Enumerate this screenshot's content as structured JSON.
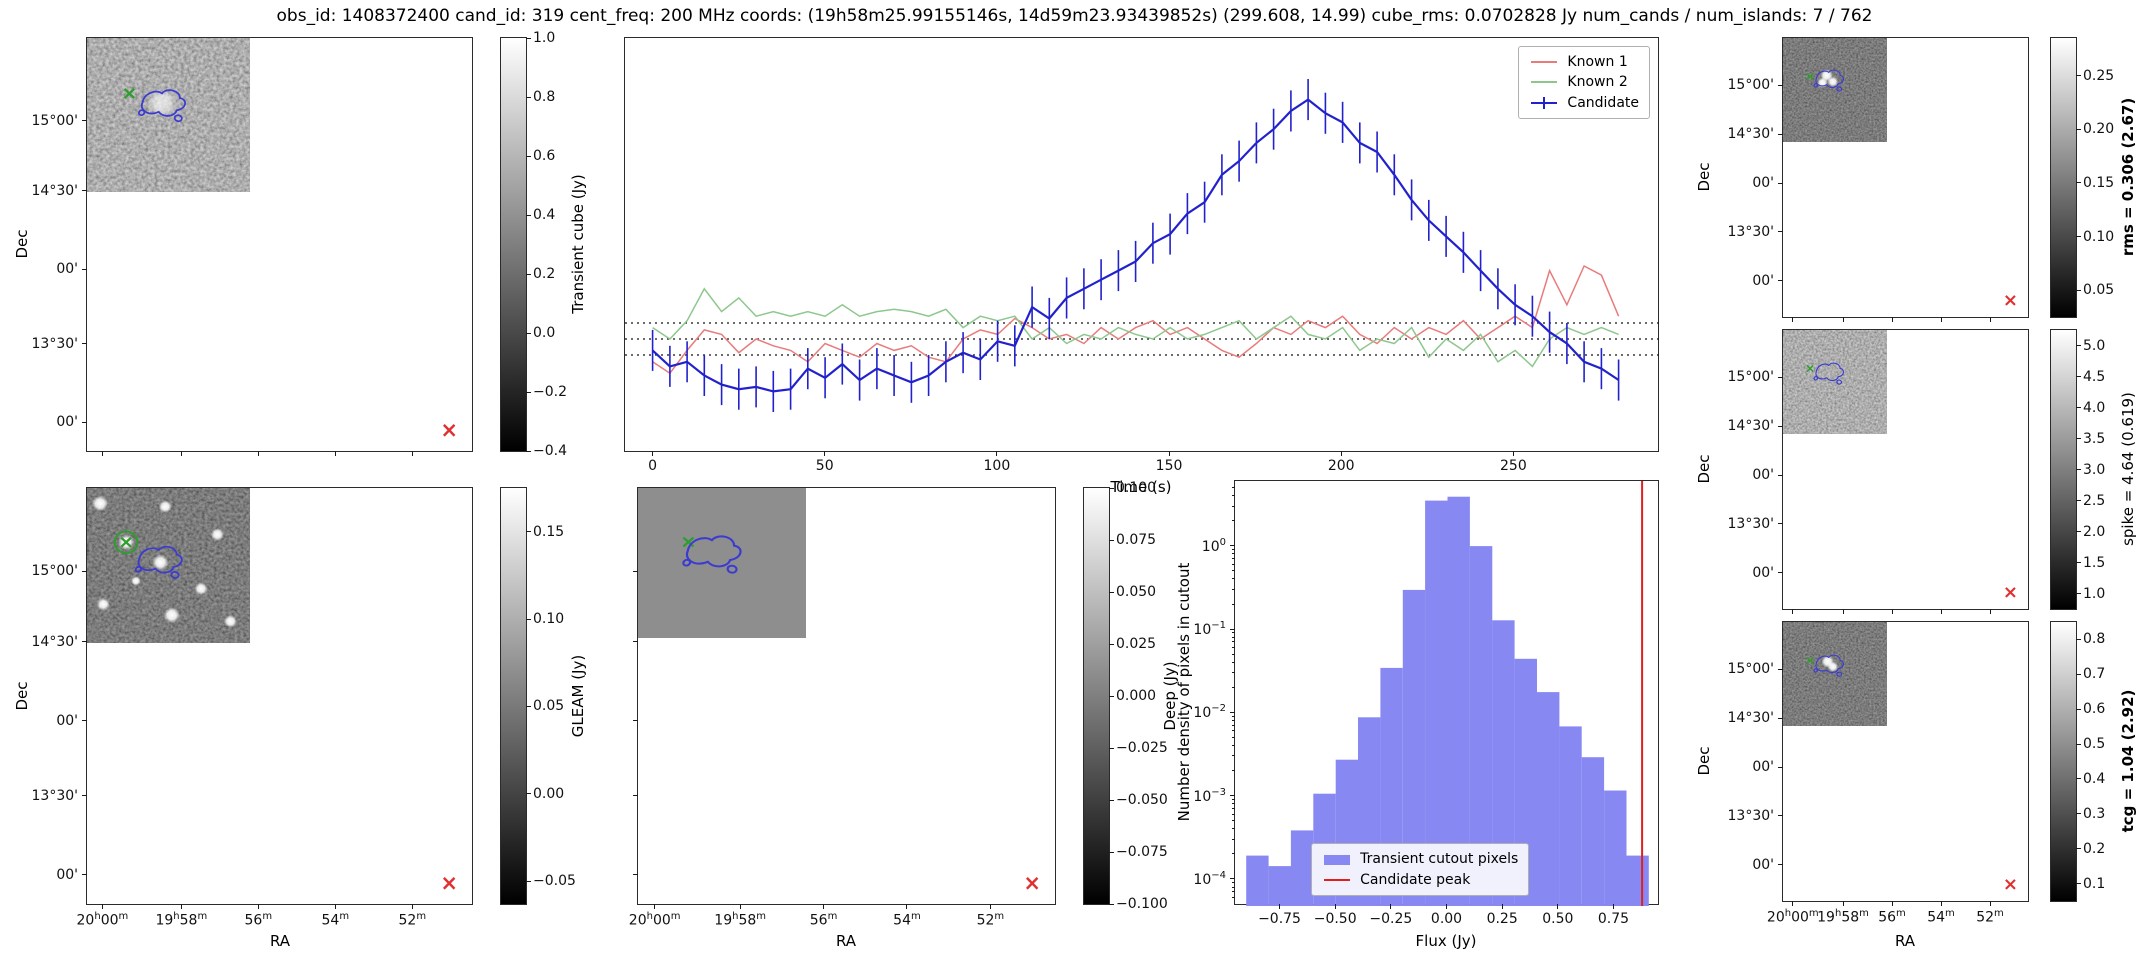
{
  "figure": {
    "title": "obs_id: 1408372400 cand_id: 319 cent_freq: 200 MHz coords: (19h58m25.99155146s, 14d59m23.93439852s) (299.608, 14.99) cube_rms: 0.0702828 Jy num_cands / num_islands: 7 / 762"
  },
  "axis_labels": {
    "dec": "Dec",
    "ra": "RA",
    "time": "Time (s)",
    "flux": "Flux (Jy)",
    "hist_y": "Number density of pixels in cutout"
  },
  "ticks": {
    "dec": [
      "15°00'",
      "14°30'",
      "00'",
      "13°30'",
      "00'"
    ],
    "ra": [
      "20h00m",
      "19h58m",
      "56m",
      "54m",
      "52m"
    ]
  },
  "colorbars": {
    "transient": {
      "label": "Transient cube (Jy)",
      "ticks": [
        "1.0",
        "0.8",
        "0.6",
        "0.4",
        "0.2",
        "0.0",
        "−0.2",
        "−0.4"
      ]
    },
    "gleam": {
      "label": "GLEAM (Jy)",
      "ticks": [
        "0.15",
        "0.10",
        "0.05",
        "0.00",
        "−0.05"
      ]
    },
    "deep": {
      "label": "Deep (Jy)",
      "ticks": [
        "0.100",
        "0.075",
        "0.050",
        "0.025",
        "0.000",
        "−0.025",
        "−0.050",
        "−0.075",
        "−0.100"
      ]
    },
    "rms": {
      "label": "rms = 0.306 (2.67)",
      "ticks": [
        "0.25",
        "0.20",
        "0.15",
        "0.10",
        "0.05"
      ]
    },
    "spike": {
      "label": "spike = 4.64 (0.619)",
      "ticks": [
        "5.0",
        "4.5",
        "4.0",
        "3.5",
        "3.0",
        "2.5",
        "2.0",
        "1.5",
        "1.0"
      ]
    },
    "tcg": {
      "label": "tcg = 1.04 (2.92)",
      "ticks": [
        "0.8",
        "0.7",
        "0.6",
        "0.5",
        "0.4",
        "0.3",
        "0.2",
        "0.1"
      ]
    }
  },
  "legend_histogram": {
    "pixels": "Transient cutout pixels",
    "peak": "Candidate peak"
  },
  "chart_data": [
    {
      "type": "line",
      "title": "",
      "xlabel": "Time (s)",
      "ylabel": "",
      "xlim": [
        -8,
        292
      ],
      "ylim": [
        -0.5,
        1.32
      ],
      "xticks": [
        0,
        50,
        100,
        150,
        200,
        250
      ],
      "dotted_lines_y": [
        0.0703,
        0.0,
        -0.0703
      ],
      "legend_position": "upper right",
      "x": [
        0,
        5,
        10,
        15,
        20,
        25,
        30,
        35,
        40,
        45,
        50,
        55,
        60,
        65,
        70,
        75,
        80,
        85,
        90,
        95,
        100,
        105,
        110,
        115,
        120,
        125,
        130,
        135,
        140,
        145,
        150,
        155,
        160,
        165,
        170,
        175,
        180,
        185,
        190,
        195,
        200,
        205,
        210,
        215,
        220,
        225,
        230,
        235,
        240,
        245,
        250,
        255,
        260,
        265,
        270,
        275,
        280
      ],
      "series": [
        {
          "name": "Known 1",
          "color": "#e87c7c",
          "values": [
            -0.1,
            -0.15,
            -0.05,
            0.04,
            0.02,
            -0.06,
            0.0,
            -0.03,
            -0.05,
            -0.1,
            -0.02,
            -0.05,
            -0.08,
            -0.02,
            -0.05,
            -0.03,
            -0.08,
            -0.1,
            0.0,
            0.04,
            0.02,
            0.09,
            0.05,
            0.0,
            0.02,
            -0.02,
            0.05,
            0.0,
            0.05,
            0.08,
            0.02,
            0.05,
            0.0,
            -0.05,
            -0.08,
            -0.02,
            0.05,
            0.02,
            0.08,
            0.05,
            0.1,
            0.02,
            -0.02,
            0.05,
            0.0,
            0.05,
            0.02,
            0.08,
            0.0,
            0.05,
            0.1,
            0.05,
            0.3,
            0.15,
            0.32,
            0.28,
            0.1
          ]
        },
        {
          "name": "Known 2",
          "color": "#8ec78e",
          "values": [
            0.05,
            0.0,
            0.08,
            0.22,
            0.12,
            0.18,
            0.1,
            0.12,
            0.1,
            0.12,
            0.1,
            0.15,
            0.1,
            0.12,
            0.13,
            0.12,
            0.1,
            0.13,
            0.05,
            0.1,
            0.08,
            0.1,
            0.0,
            0.05,
            -0.02,
            0.02,
            0.0,
            0.05,
            0.02,
            0.0,
            0.05,
            0.0,
            0.02,
            0.05,
            0.08,
            0.0,
            0.05,
            0.1,
            0.02,
            0.0,
            0.05,
            -0.05,
            0.0,
            -0.02,
            0.05,
            -0.08,
            0.0,
            -0.05,
            0.02,
            -0.1,
            -0.05,
            -0.12,
            0.0,
            0.05,
            0.02,
            0.05,
            0.02
          ]
        },
        {
          "name": "Candidate",
          "color": "#2222cc",
          "yerr": 0.09,
          "values": [
            -0.05,
            -0.12,
            -0.1,
            -0.16,
            -0.2,
            -0.22,
            -0.21,
            -0.23,
            -0.22,
            -0.13,
            -0.17,
            -0.11,
            -0.18,
            -0.13,
            -0.16,
            -0.19,
            -0.16,
            -0.1,
            -0.06,
            -0.09,
            -0.01,
            -0.03,
            0.14,
            0.09,
            0.18,
            0.22,
            0.26,
            0.3,
            0.34,
            0.42,
            0.46,
            0.55,
            0.6,
            0.72,
            0.78,
            0.86,
            0.92,
            1.0,
            1.05,
            0.99,
            0.95,
            0.86,
            0.82,
            0.72,
            0.61,
            0.52,
            0.45,
            0.38,
            0.3,
            0.22,
            0.15,
            0.1,
            0.03,
            -0.02,
            -0.1,
            -0.13,
            -0.18
          ]
        }
      ]
    },
    {
      "type": "bar",
      "title": "",
      "xlabel": "Flux (Jy)",
      "ylabel": "Number density of pixels in cutout",
      "yscale": "log",
      "xlim": [
        -0.95,
        0.95
      ],
      "ylim": [
        5e-05,
        6
      ],
      "xtick_values": [
        -0.75,
        -0.5,
        -0.25,
        0,
        0.25,
        0.5,
        0.75
      ],
      "xtick_labels": [
        "−0.75",
        "−0.50",
        "−0.25",
        "0.00",
        "0.25",
        "0.50",
        "0.75"
      ],
      "ytick_exponents": [
        0,
        -1,
        -2,
        -3,
        -4
      ],
      "bar_color": "#8888f2",
      "peak_line_color": "#e02020",
      "bin_width": 0.1,
      "bin_centers": [
        -0.85,
        -0.75,
        -0.65,
        -0.55,
        -0.45,
        -0.35,
        -0.25,
        -0.15,
        -0.05,
        0.05,
        0.15,
        0.25,
        0.35,
        0.45,
        0.55,
        0.65,
        0.75,
        0.85
      ],
      "densities": [
        0.0002,
        0.00015,
        0.0004,
        0.0011,
        0.0028,
        0.009,
        0.035,
        0.3,
        3.5,
        3.9,
        1.0,
        0.13,
        0.045,
        0.018,
        0.007,
        0.003,
        0.0012,
        0.0002
      ],
      "candidate_peak_x": 0.87
    }
  ]
}
